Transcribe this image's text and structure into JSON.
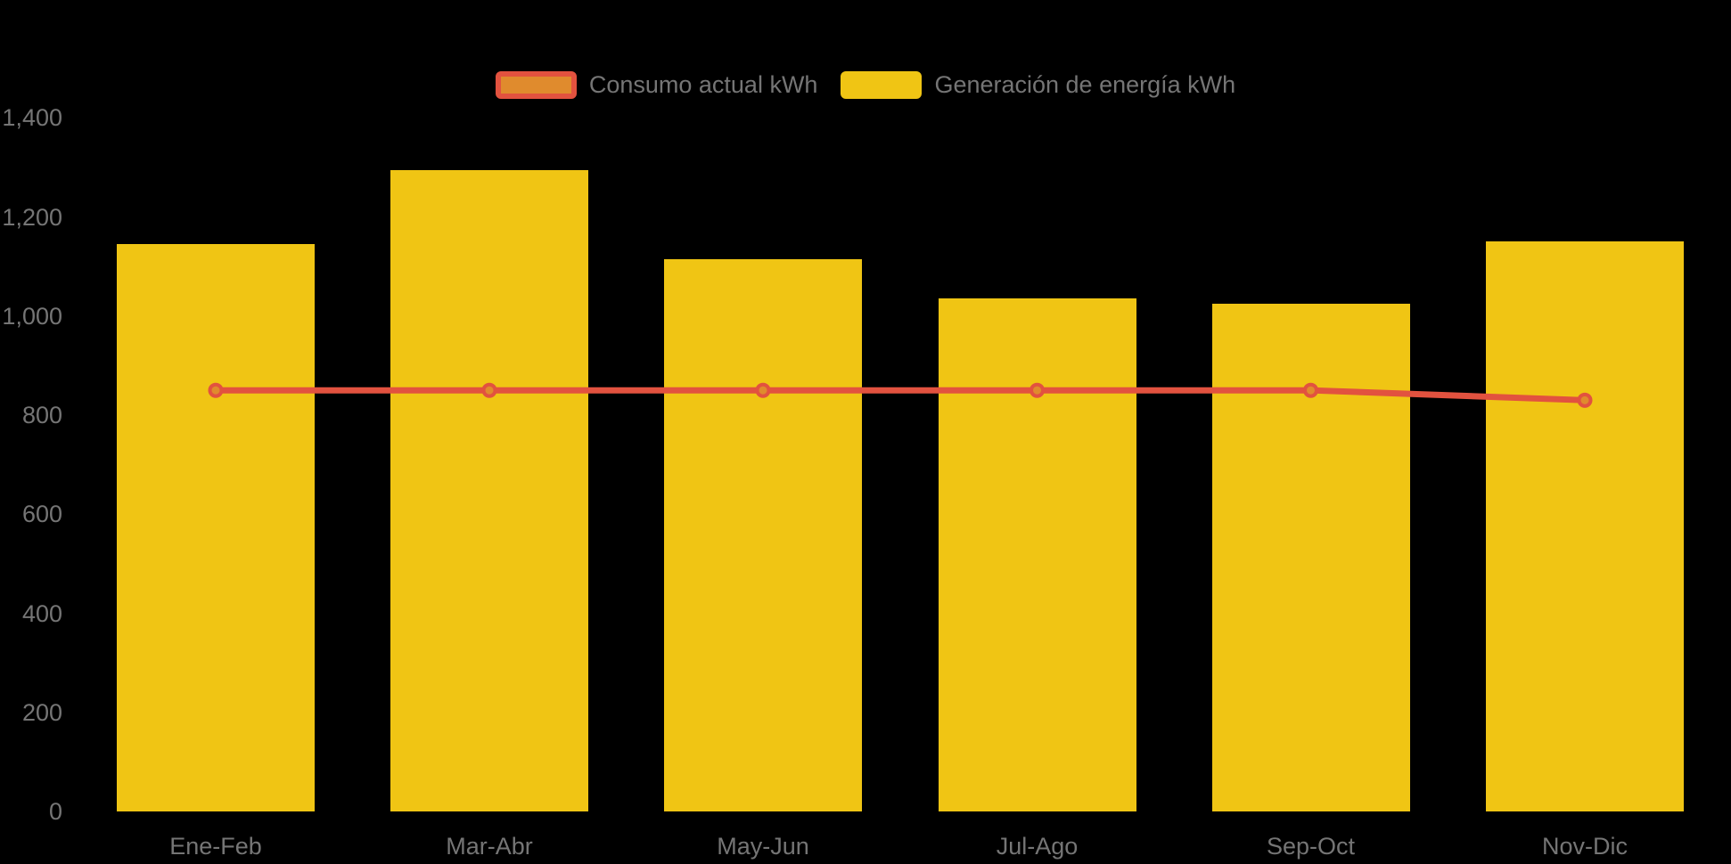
{
  "chart_data": {
    "type": "bar",
    "categories": [
      "Ene-Feb",
      "Mar-Abr",
      "May-Jun",
      "Jul-Ago",
      "Sep-Oct",
      "Nov-Dic"
    ],
    "series": [
      {
        "name": "Consumo actual kWh",
        "type": "line",
        "values": [
          850,
          850,
          850,
          850,
          850,
          830
        ],
        "line_color": "#E2523F",
        "marker_fill": "#E08B2D"
      },
      {
        "name": "Generación de energía kWh",
        "type": "bar",
        "values": [
          1145,
          1295,
          1115,
          1035,
          1025,
          1150
        ],
        "bar_color": "#F0C514"
      }
    ],
    "title": "",
    "xlabel": "",
    "ylabel": "",
    "ylim": [
      0,
      1400
    ],
    "ytick_interval": 200,
    "ytick_labels": [
      "0",
      "200",
      "400",
      "600",
      "800",
      "1,000",
      "1,200",
      "1,400"
    ],
    "grid": false,
    "legend_position": "top",
    "background": "#000000"
  },
  "legend": {
    "items": [
      {
        "label": "Consumo actual kWh",
        "swatch_border": "#E2523F",
        "swatch_fill": "#E08B2D",
        "kind": "line"
      },
      {
        "label": "Generación de energía kWh",
        "swatch_border": "#F0C514",
        "swatch_fill": "#F0C514",
        "kind": "bar"
      }
    ]
  },
  "colors": {
    "background": "#000000",
    "bar_yellow": "#F0C514",
    "line_red": "#E2523F",
    "marker_orange": "#E08B2D",
    "axis_text": "#757575"
  }
}
